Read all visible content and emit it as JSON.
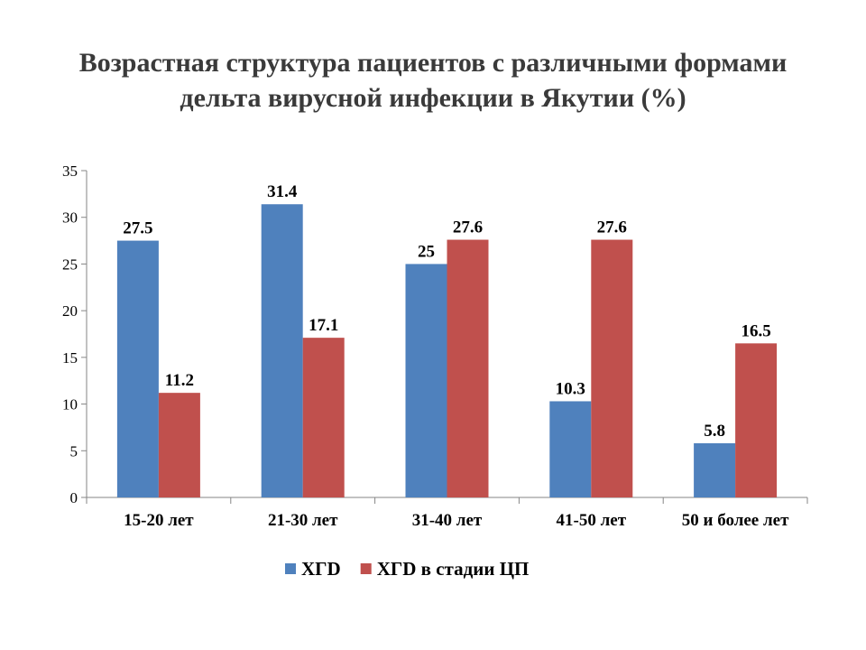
{
  "chart_data": {
    "type": "bar",
    "title_lines": [
      "Возрастная структура пациентов с различными формами",
      "дельта вирусной инфекции в Якутии (%)"
    ],
    "categories": [
      "15-20 лет",
      "21-30 лет",
      "31-40 лет",
      "41-50 лет",
      "50 и более лет"
    ],
    "series": [
      {
        "name": "ХГD",
        "color": "#4F81BD",
        "values": [
          27.5,
          31.4,
          25,
          10.3,
          5.8
        ]
      },
      {
        "name": "ХГD в стадии ЦП",
        "color": "#C0504D",
        "values": [
          11.2,
          17.1,
          27.6,
          27.6,
          16.5
        ]
      }
    ],
    "data_labels": [
      [
        "27.5",
        "31.4",
        "25",
        "10.3",
        "5.8"
      ],
      [
        "11.2",
        "17.1",
        "27.6",
        "27.6",
        "16.5"
      ]
    ],
    "y_ticks": [
      "0",
      "5",
      "10",
      "15",
      "20",
      "25",
      "30",
      "35"
    ],
    "ylim": [
      0,
      35
    ],
    "grid": false,
    "legend_position": "bottom"
  }
}
